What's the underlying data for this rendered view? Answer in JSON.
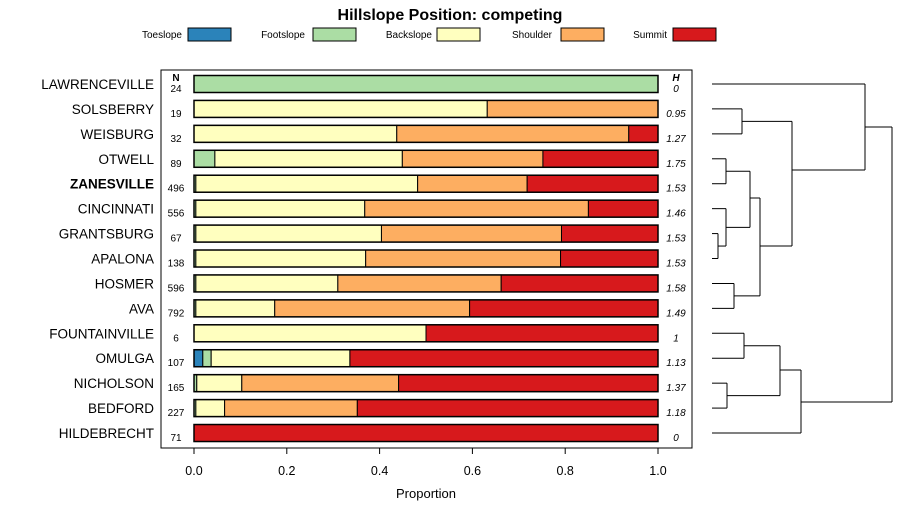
{
  "chart_data": {
    "type": "stacked-bar-horizontal",
    "title": "Hillslope Position: competing",
    "xlabel": "Proportion",
    "xlim": [
      0,
      1
    ],
    "xticks": [
      "0.0",
      "0.2",
      "0.4",
      "0.6",
      "0.8",
      "1.0"
    ],
    "n_header": "N",
    "h_header": "H",
    "series": [
      {
        "name": "Toeslope",
        "color": "#2b83ba"
      },
      {
        "name": "Footslope",
        "color": "#abdda4"
      },
      {
        "name": "Backslope",
        "color": "#ffffbf"
      },
      {
        "name": "Shoulder",
        "color": "#fdae61"
      },
      {
        "name": "Summit",
        "color": "#d7191c"
      }
    ],
    "rows": [
      {
        "label": "LAWRENCEVILLE",
        "bold": false,
        "n": "24",
        "h": "0",
        "values": [
          0,
          1,
          0,
          0,
          0
        ]
      },
      {
        "label": "SOLSBERRY",
        "bold": false,
        "n": "19",
        "h": "0.95",
        "values": [
          0,
          0,
          0.632,
          0.368,
          0
        ]
      },
      {
        "label": "WEISBURG",
        "bold": false,
        "n": "32",
        "h": "1.27",
        "values": [
          0,
          0,
          0.437,
          0.5,
          0.063
        ]
      },
      {
        "label": "OTWELL",
        "bold": false,
        "n": "89",
        "h": "1.75",
        "values": [
          0,
          0.045,
          0.404,
          0.303,
          0.248
        ]
      },
      {
        "label": "ZANESVILLE",
        "bold": true,
        "n": "496",
        "h": "1.53",
        "values": [
          0,
          0.004,
          0.478,
          0.236,
          0.282
        ]
      },
      {
        "label": "CINCINNATI",
        "bold": false,
        "n": "556",
        "h": "1.46",
        "values": [
          0,
          0.004,
          0.364,
          0.482,
          0.15
        ]
      },
      {
        "label": "GRANTSBURG",
        "bold": false,
        "n": "67",
        "h": "1.53",
        "values": [
          0,
          0.004,
          0.4,
          0.388,
          0.208
        ]
      },
      {
        "label": "APALONA",
        "bold": false,
        "n": "138",
        "h": "1.53",
        "values": [
          0,
          0.004,
          0.366,
          0.42,
          0.21
        ]
      },
      {
        "label": "HOSMER",
        "bold": false,
        "n": "596",
        "h": "1.58",
        "values": [
          0,
          0.004,
          0.306,
          0.352,
          0.338
        ]
      },
      {
        "label": "AVA",
        "bold": false,
        "n": "792",
        "h": "1.49",
        "values": [
          0,
          0.004,
          0.17,
          0.42,
          0.406
        ]
      },
      {
        "label": "FOUNTAINVILLE",
        "bold": false,
        "n": "6",
        "h": "1",
        "values": [
          0,
          0,
          0.5,
          0,
          0.5
        ]
      },
      {
        "label": "OMULGA",
        "bold": false,
        "n": "107",
        "h": "1.13",
        "values": [
          0.019,
          0.018,
          0.299,
          0,
          0.664
        ]
      },
      {
        "label": "NICHOLSON",
        "bold": false,
        "n": "165",
        "h": "1.37",
        "values": [
          0,
          0.006,
          0.097,
          0.338,
          0.559
        ]
      },
      {
        "label": "BEDFORD",
        "bold": false,
        "n": "227",
        "h": "1.18",
        "values": [
          0,
          0.004,
          0.062,
          0.286,
          0.648
        ]
      },
      {
        "label": "HILDEBRECHT",
        "bold": false,
        "n": "71",
        "h": "0",
        "values": [
          0,
          0,
          0,
          0,
          1
        ]
      }
    ],
    "dendrogram": {
      "merges": [
        [
          1,
          2,
          0.62
        ],
        [
          5,
          6,
          0.96
        ],
        [
          10,
          11,
          0.82
        ],
        [
          12,
          13,
          0.67
        ]
      ]
    }
  }
}
